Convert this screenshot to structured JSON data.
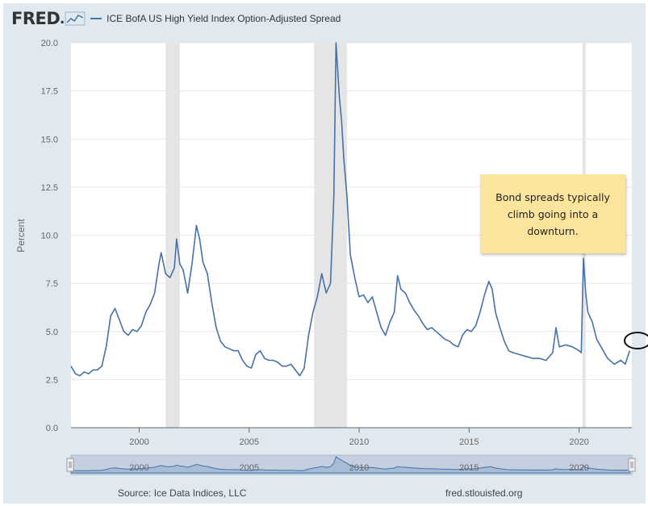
{
  "header": {
    "logo_text": "FRED",
    "series_title": "ICE BofA US High Yield Index Option-Adjusted Spread"
  },
  "colors": {
    "line": "#4572a7",
    "recession": "#e5e5e5",
    "note_bg": "#fbe49c",
    "frame": "#e1e9f0"
  },
  "annotation": {
    "text": "Bond spreads typically climb going into a downturn."
  },
  "footer": {
    "source": "Source: Ice Data Indices, LLC",
    "site": "fred.stlouisfed.org"
  },
  "chart_data": {
    "type": "line",
    "title": "",
    "xlabel": "",
    "ylabel": "Percent",
    "xlim": [
      1996.9,
      2022.4
    ],
    "ylim": [
      0,
      20
    ],
    "yticks": [
      0.0,
      2.5,
      5.0,
      7.5,
      10.0,
      12.5,
      15.0,
      17.5,
      20.0
    ],
    "ytick_labels": [
      "0.0",
      "2.5",
      "5.0",
      "7.5",
      "10.0",
      "12.5",
      "15.0",
      "17.5",
      "20.0"
    ],
    "xticks": [
      2000,
      2005,
      2010,
      2015,
      2020
    ],
    "xtick_labels": [
      "2000",
      "2005",
      "2010",
      "2015",
      "2020"
    ],
    "recessions": [
      [
        2001.2,
        2001.85
      ],
      [
        2007.95,
        2009.45
      ],
      [
        2020.15,
        2020.3
      ]
    ],
    "navigator_labels": [
      "2000",
      "2005",
      "2010",
      "2015",
      "2020"
    ],
    "series": [
      {
        "x": [
          1996.9,
          1997.1,
          1997.3,
          1997.5,
          1997.7,
          1997.9,
          1998.1,
          1998.3,
          1998.5,
          1998.7,
          1998.9,
          1999.1,
          1999.3,
          1999.5,
          1999.7,
          1999.9,
          2000.1,
          2000.3,
          2000.5,
          2000.7,
          2000.9,
          2001.0,
          2001.2,
          2001.4,
          2001.6,
          2001.7,
          2001.85,
          2002.0,
          2002.2,
          2002.4,
          2002.6,
          2002.75,
          2002.9,
          2003.1,
          2003.3,
          2003.5,
          2003.7,
          2003.9,
          2004.1,
          2004.3,
          2004.5,
          2004.7,
          2004.9,
          2005.1,
          2005.3,
          2005.5,
          2005.7,
          2005.9,
          2006.1,
          2006.3,
          2006.5,
          2006.7,
          2006.9,
          2007.1,
          2007.3,
          2007.5,
          2007.7,
          2007.9,
          2008.1,
          2008.3,
          2008.5,
          2008.7,
          2008.85,
          2008.95,
          2009.1,
          2009.2,
          2009.3,
          2009.45,
          2009.6,
          2009.8,
          2010.0,
          2010.2,
          2010.4,
          2010.6,
          2010.8,
          2011.0,
          2011.2,
          2011.4,
          2011.6,
          2011.75,
          2011.9,
          2012.1,
          2012.3,
          2012.5,
          2012.7,
          2012.9,
          2013.1,
          2013.3,
          2013.5,
          2013.7,
          2013.9,
          2014.1,
          2014.3,
          2014.5,
          2014.7,
          2014.9,
          2015.1,
          2015.3,
          2015.5,
          2015.7,
          2015.9,
          2016.05,
          2016.2,
          2016.4,
          2016.6,
          2016.8,
          2017.0,
          2017.3,
          2017.6,
          2017.9,
          2018.2,
          2018.5,
          2018.8,
          2018.95,
          2019.1,
          2019.4,
          2019.7,
          2020.0,
          2020.1,
          2020.2,
          2020.3,
          2020.4,
          2020.6,
          2020.8,
          2021.0,
          2021.3,
          2021.6,
          2021.9,
          2022.1,
          2022.3
        ],
        "values": [
          3.2,
          2.8,
          2.7,
          2.9,
          2.8,
          3.0,
          3.0,
          3.2,
          4.2,
          5.8,
          6.2,
          5.6,
          5.0,
          4.8,
          5.1,
          5.0,
          5.3,
          6.0,
          6.4,
          7.0,
          8.5,
          9.1,
          8.0,
          7.8,
          8.3,
          9.8,
          8.5,
          8.2,
          7.0,
          8.5,
          10.5,
          9.8,
          8.6,
          8.0,
          6.5,
          5.2,
          4.5,
          4.2,
          4.1,
          4.0,
          4.0,
          3.5,
          3.2,
          3.1,
          3.8,
          4.0,
          3.6,
          3.5,
          3.5,
          3.4,
          3.2,
          3.2,
          3.3,
          3.0,
          2.7,
          3.1,
          4.8,
          6.0,
          6.8,
          8.0,
          7.0,
          7.5,
          12.0,
          20.0,
          17.2,
          16.0,
          14.0,
          12.0,
          9.0,
          7.8,
          6.8,
          6.9,
          6.5,
          6.8,
          6.0,
          5.2,
          4.8,
          5.5,
          6.0,
          7.9,
          7.2,
          7.0,
          6.5,
          6.1,
          5.8,
          5.4,
          5.1,
          5.2,
          5.0,
          4.8,
          4.6,
          4.5,
          4.3,
          4.2,
          4.8,
          5.1,
          5.0,
          5.3,
          6.0,
          6.9,
          7.6,
          7.2,
          6.0,
          5.2,
          4.5,
          4.0,
          3.9,
          3.8,
          3.7,
          3.6,
          3.6,
          3.5,
          3.9,
          5.2,
          4.2,
          4.3,
          4.2,
          4.0,
          3.9,
          8.8,
          7.0,
          6.0,
          5.5,
          4.6,
          4.2,
          3.6,
          3.3,
          3.5,
          3.3,
          4.0
        ]
      }
    ]
  }
}
